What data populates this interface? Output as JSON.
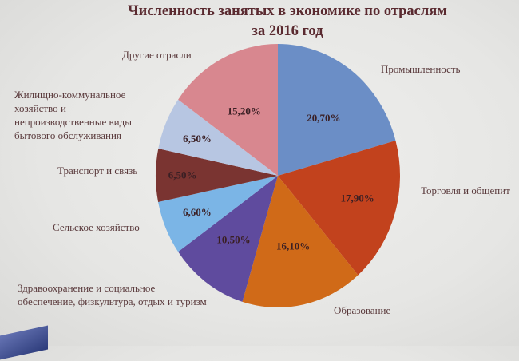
{
  "chart_data": {
    "type": "pie",
    "title": "Численность занятых в экономике по отраслям за 2016 год",
    "start_angle": "12 o'clock",
    "direction": "clockwise",
    "slices": [
      {
        "label": "Промышленность",
        "value": 20.7,
        "display": "20,70%",
        "color": "#6b8ec6"
      },
      {
        "label": "Торговля и общепит",
        "value": 17.9,
        "display": "17,90%",
        "color": "#c2421d"
      },
      {
        "label": "Образование",
        "value": 16.1,
        "display": "16,10%",
        "color": "#d06a18"
      },
      {
        "label": "Здравоохранение и социальное\nобеспечение, физкультура,  отдых и туризм",
        "value": 10.5,
        "display": "10,50%",
        "color": "#5f4b9e"
      },
      {
        "label": "Сельское хозяйство",
        "value": 6.6,
        "display": "6,60%",
        "color": "#7bb5e6"
      },
      {
        "label": "Транспорт и связь",
        "value": 6.5,
        "display": "6,50%",
        "color": "#7a3431"
      },
      {
        "label": "Жилищно-коммунальное\nхозяйство и\nнепроизводственные виды\nбытового обслуживания",
        "value": 6.5,
        "display": "6,50%",
        "color": "#b7c6e2"
      },
      {
        "label": "Другие отрасли",
        "value": 15.2,
        "display": "15,20%",
        "color": "#d8878f"
      }
    ]
  }
}
